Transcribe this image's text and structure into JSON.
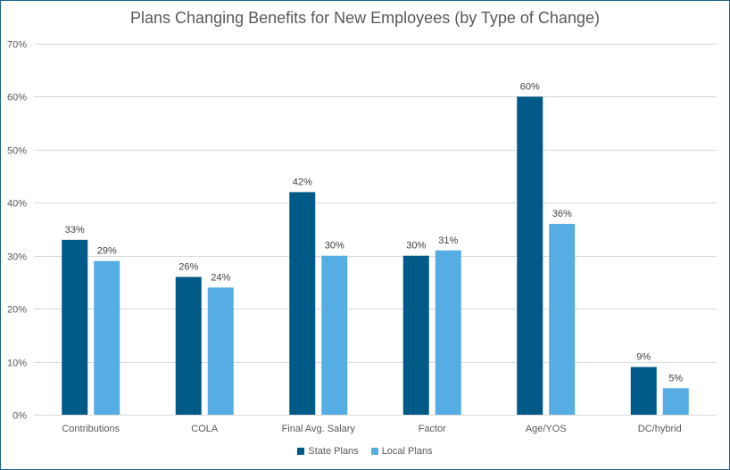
{
  "chart_data": {
    "type": "bar",
    "title": "Plans Changing Benefits for New Employees (by Type of Change)",
    "xlabel": "",
    "ylabel": "",
    "categories": [
      "Contributions",
      "COLA",
      "Final Avg. Salary",
      "Factor",
      "Age/YOS",
      "DC/hybrid"
    ],
    "series": [
      {
        "name": "State Plans",
        "color": "#005a87",
        "values": [
          33,
          26,
          42,
          30,
          60,
          9
        ],
        "labels": [
          "33%",
          "26%",
          "42%",
          "30%",
          "60%",
          "9%"
        ]
      },
      {
        "name": "Local Plans",
        "color": "#56ade3",
        "values": [
          29,
          24,
          30,
          31,
          36,
          5
        ],
        "labels": [
          "29%",
          "24%",
          "30%",
          "31%",
          "36%",
          "5%"
        ]
      }
    ],
    "ylim": [
      0,
      70
    ],
    "yticks": [
      0,
      10,
      20,
      30,
      40,
      50,
      60,
      70
    ],
    "ytick_labels": [
      "0%",
      "10%",
      "20%",
      "30%",
      "40%",
      "50%",
      "60%",
      "70%"
    ],
    "grid": true,
    "legend_position": "bottom"
  }
}
